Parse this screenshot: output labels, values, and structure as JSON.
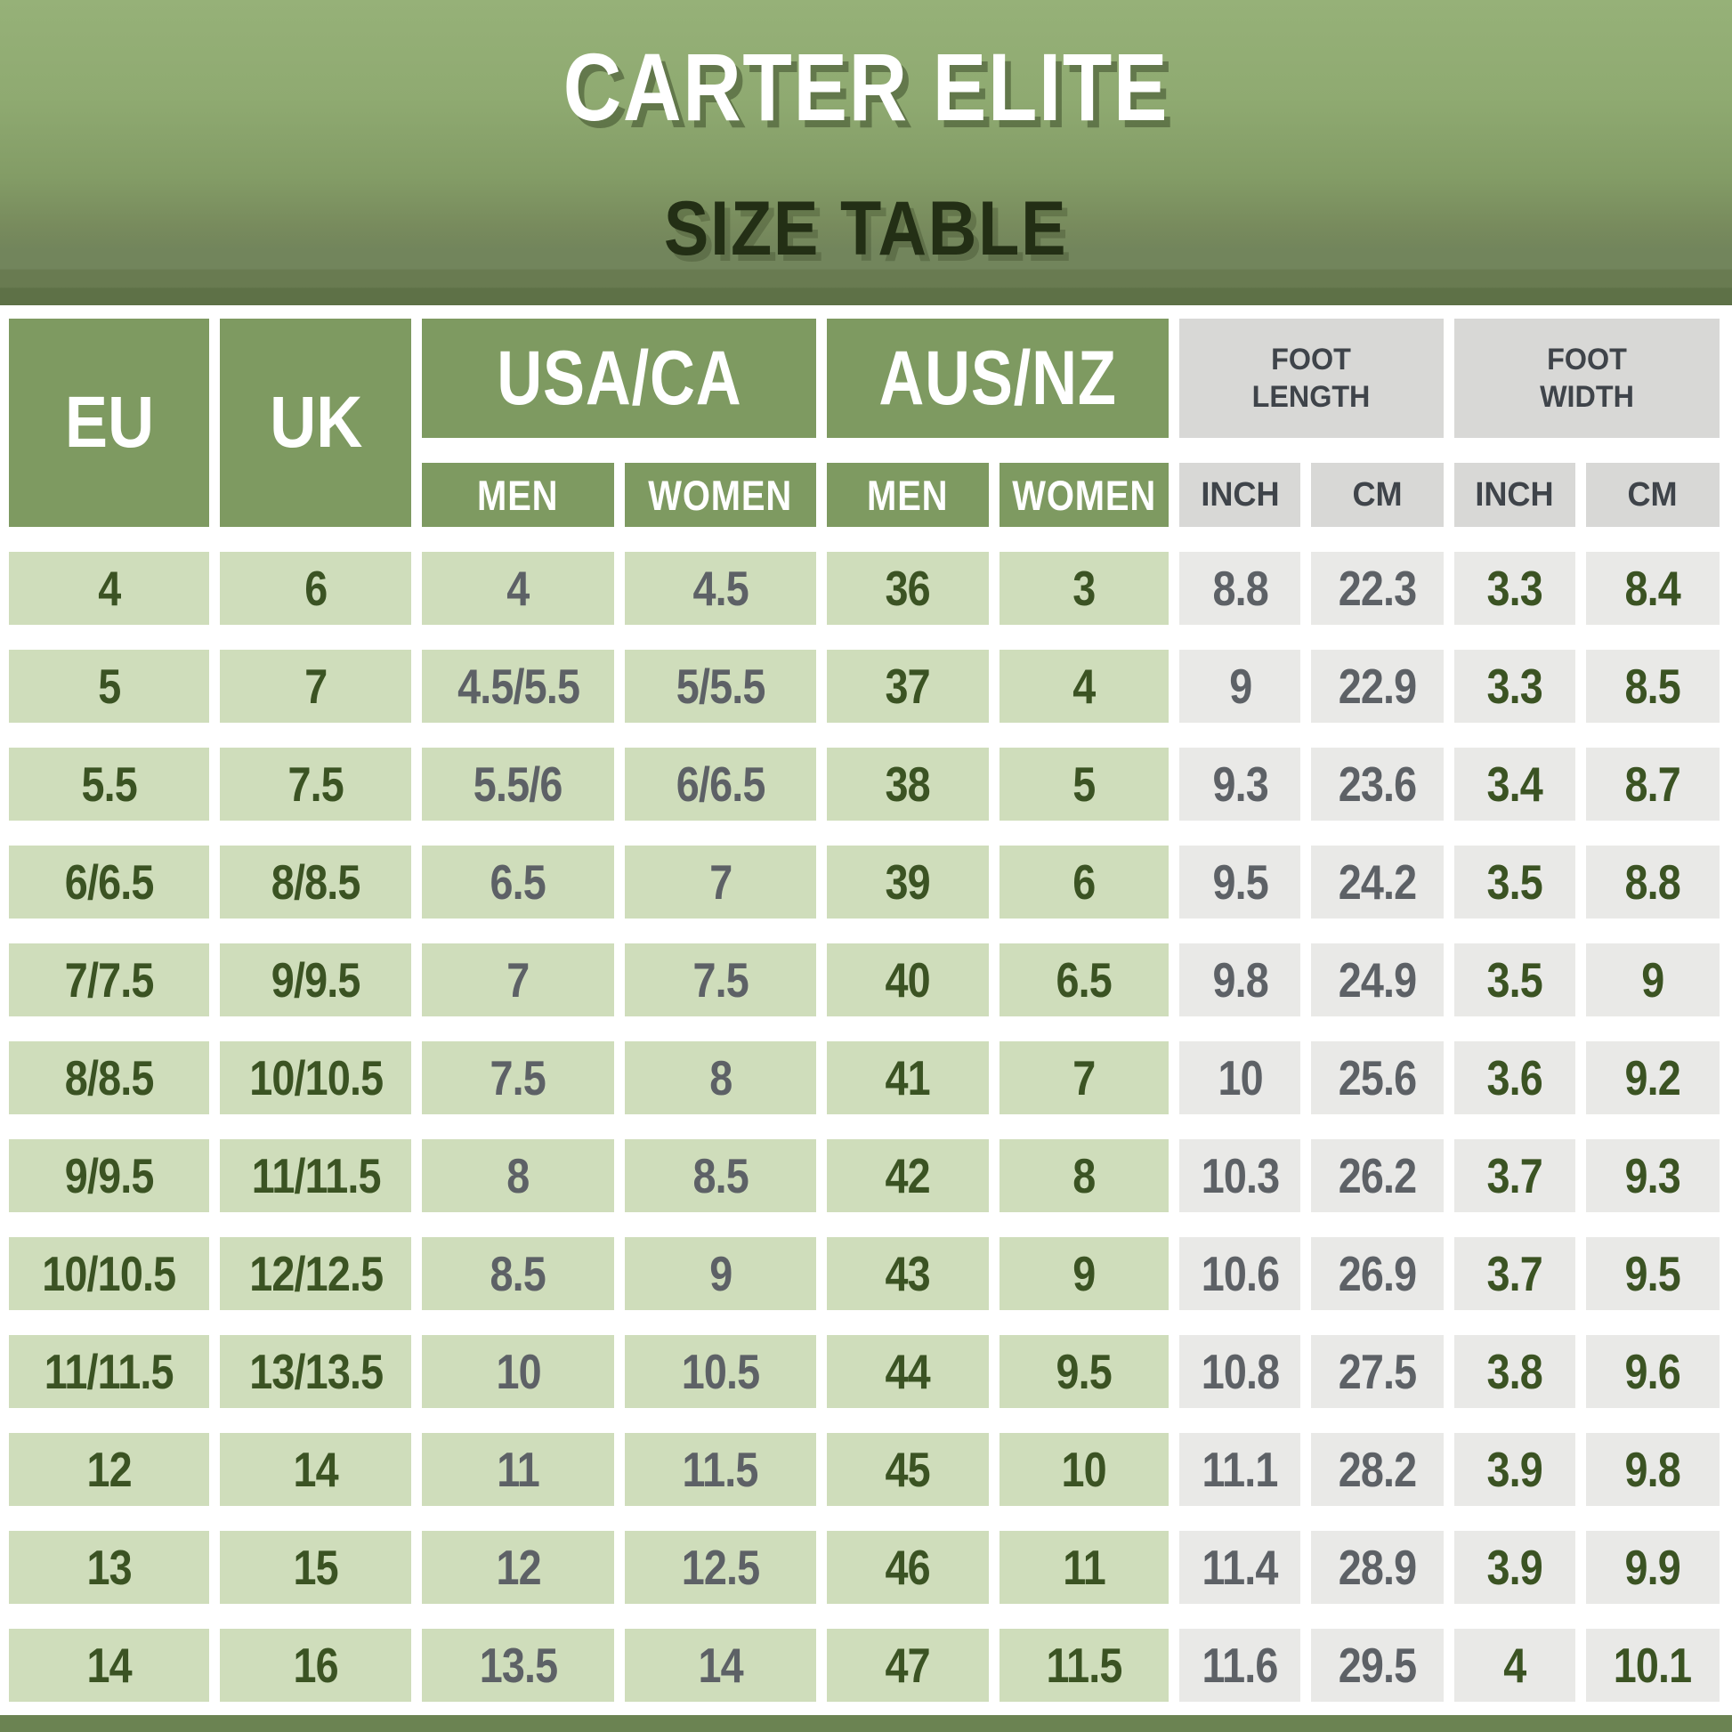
{
  "title": {
    "brand": "CARTER ELITE",
    "subtitle": "SIZE TABLE"
  },
  "chart_data": {
    "type": "table",
    "title": "CARTER ELITE",
    "subtitle": "SIZE TABLE",
    "column_groups": [
      {
        "label": "USA/CA",
        "children": [
          "MEN",
          "WOMEN"
        ]
      },
      {
        "label": "AUS/NZ",
        "children": [
          "MEN",
          "WOMEN"
        ]
      },
      {
        "label": "EU",
        "children": []
      },
      {
        "label": "UK",
        "children": []
      },
      {
        "label": "FOOT LENGTH",
        "children": [
          "INCH",
          "CM"
        ]
      },
      {
        "label": "FOOT WIDTH",
        "children": [
          "INCH",
          "CM"
        ]
      }
    ],
    "columns": [
      "USA/CA MEN",
      "USA/CA WOMEN",
      "AUS/NZ MEN",
      "AUS/NZ WOMEN",
      "EU",
      "UK",
      "FOOT LENGTH INCH",
      "FOOT LENGTH CM",
      "FOOT WIDTH INCH",
      "FOOT WIDTH CM"
    ],
    "rows": [
      [
        "4",
        "6",
        "4",
        "4.5",
        "36",
        "3",
        "8.8",
        "22.3",
        "3.3",
        "8.4"
      ],
      [
        "5",
        "7",
        "4.5/5.5",
        "5/5.5",
        "37",
        "4",
        "9",
        "22.9",
        "3.3",
        "8.5"
      ],
      [
        "5.5",
        "7.5",
        "5.5/6",
        "6/6.5",
        "38",
        "5",
        "9.3",
        "23.6",
        "3.4",
        "8.7"
      ],
      [
        "6/6.5",
        "8/8.5",
        "6.5",
        "7",
        "39",
        "6",
        "9.5",
        "24.2",
        "3.5",
        "8.8"
      ],
      [
        "7/7.5",
        "9/9.5",
        "7",
        "7.5",
        "40",
        "6.5",
        "9.8",
        "24.9",
        "3.5",
        "9"
      ],
      [
        "8/8.5",
        "10/10.5",
        "7.5",
        "8",
        "41",
        "7",
        "10",
        "25.6",
        "3.6",
        "9.2"
      ],
      [
        "9/9.5",
        "11/11.5",
        "8",
        "8.5",
        "42",
        "8",
        "10.3",
        "26.2",
        "3.7",
        "9.3"
      ],
      [
        "10/10.5",
        "12/12.5",
        "8.5",
        "9",
        "43",
        "9",
        "10.6",
        "26.9",
        "3.7",
        "9.5"
      ],
      [
        "11/11.5",
        "13/13.5",
        "10",
        "10.5",
        "44",
        "9.5",
        "10.8",
        "27.5",
        "3.8",
        "9.6"
      ],
      [
        "12",
        "14",
        "11",
        "11.5",
        "45",
        "10",
        "11.1",
        "28.2",
        "3.9",
        "9.8"
      ],
      [
        "13",
        "15",
        "12",
        "12.5",
        "46",
        "11",
        "11.4",
        "28.9",
        "3.9",
        "9.9"
      ],
      [
        "14",
        "16",
        "13.5",
        "14",
        "47",
        "11.5",
        "11.6",
        "29.5",
        "4",
        "10.1"
      ]
    ]
  },
  "colors": {
    "hero_top": "#96b178",
    "hero_bottom": "#5e7147",
    "header_green": "#7e9a61",
    "header_gray": "#d8d8d6",
    "cell_green": "#cfddbb",
    "cell_gray": "#e9e9e7",
    "text_dark_green": "#3b5323",
    "text_gray": "#5d6166",
    "gray_header_text": "#3f444a",
    "title_white": "#ffffff",
    "subtitle_dark": "#232f15",
    "footer_bar": "#6b8352"
  }
}
